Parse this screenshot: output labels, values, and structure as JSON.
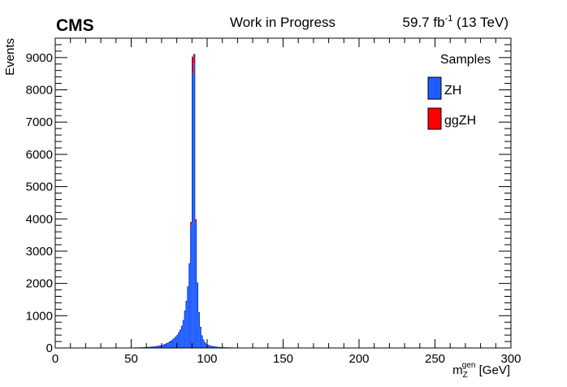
{
  "header": {
    "experiment": "CMS",
    "status": "Work in Progress",
    "lumi_value": "59.7 fb",
    "lumi_exp": "-1",
    "energy": " (13 TeV)"
  },
  "chart_data": {
    "type": "bar",
    "stacked": true,
    "ylabel": "Events",
    "xlabel_main": "m",
    "xlabel_sub": "Z",
    "xlabel_sup": "gen",
    "xlabel_unit": " [GeV]",
    "xlim": [
      0,
      300
    ],
    "ylim": [
      0,
      9600
    ],
    "x_ticks": [
      0,
      50,
      100,
      150,
      200,
      250,
      300
    ],
    "y_ticks": [
      0,
      1000,
      2000,
      3000,
      4000,
      5000,
      6000,
      7000,
      8000,
      9000
    ],
    "bin_width": 1,
    "grid": false,
    "legend": {
      "title": "Samples",
      "position": "top-right",
      "entries": [
        "ZH",
        "ggZH"
      ]
    },
    "colors": {
      "ZH": "#1f5cff",
      "ggZH": "#ff0000"
    },
    "series": [
      {
        "name": "ZH",
        "x": [
          50,
          55,
          60,
          65,
          70,
          72,
          74,
          76,
          78,
          80,
          81,
          82,
          83,
          84,
          85,
          86,
          87,
          88,
          89,
          90,
          91,
          92,
          93,
          94,
          95,
          96,
          97,
          98,
          99,
          100,
          102,
          104,
          106,
          108,
          110,
          115,
          120
        ],
        "values": [
          5,
          10,
          20,
          40,
          80,
          120,
          160,
          220,
          300,
          400,
          480,
          560,
          680,
          860,
          1150,
          1450,
          1900,
          2600,
          3800,
          8500,
          8800,
          3900,
          2000,
          1100,
          650,
          380,
          250,
          170,
          120,
          90,
          60,
          40,
          30,
          20,
          15,
          8,
          4
        ]
      },
      {
        "name": "ggZH",
        "x": [
          88,
          89,
          90,
          91,
          92,
          93
        ],
        "values": [
          20,
          100,
          520,
          300,
          80,
          20
        ]
      }
    ]
  }
}
